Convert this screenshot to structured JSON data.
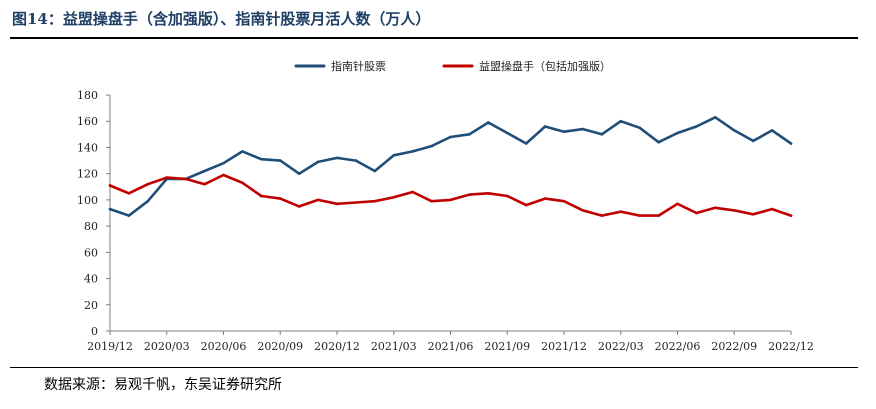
{
  "figure": {
    "title": "图14：益盟操盘手（含加强版）、指南针股票月活人数（万人）",
    "source": "数据来源：易观千帆，东吴证券研究所"
  },
  "colors": {
    "series1": "#1f4e79",
    "series2": "#c00000",
    "axis": "#7f7f7f"
  },
  "chart_data": {
    "type": "line",
    "title": "",
    "xlabel": "",
    "ylabel": "",
    "ylim": [
      0,
      180
    ],
    "yticks": [
      0,
      20,
      40,
      60,
      80,
      100,
      120,
      140,
      160,
      180
    ],
    "grid": false,
    "legend": "top",
    "x": [
      "2019/12",
      "2020/01",
      "2020/02",
      "2020/03",
      "2020/04",
      "2020/05",
      "2020/06",
      "2020/07",
      "2020/08",
      "2020/09",
      "2020/10",
      "2020/11",
      "2020/12",
      "2021/01",
      "2021/02",
      "2021/03",
      "2021/04",
      "2021/05",
      "2021/06",
      "2021/07",
      "2021/08",
      "2021/09",
      "2021/10",
      "2021/11",
      "2021/12",
      "2022/01",
      "2022/02",
      "2022/03",
      "2022/04",
      "2022/05",
      "2022/06",
      "2022/07",
      "2022/08",
      "2022/09",
      "2022/10",
      "2022/11",
      "2022/12"
    ],
    "xtick_labels": [
      "2019/12",
      "2020/03",
      "2020/06",
      "2020/09",
      "2020/12",
      "2021/03",
      "2021/06",
      "2021/09",
      "2021/12",
      "2022/03",
      "2022/06",
      "2022/09",
      "2022/12"
    ],
    "series": [
      {
        "name": "指南针股票",
        "values": [
          93,
          88,
          99,
          116,
          116,
          122,
          128,
          137,
          131,
          130,
          120,
          129,
          132,
          130,
          122,
          134,
          137,
          141,
          148,
          150,
          159,
          151,
          143,
          156,
          152,
          154,
          150,
          160,
          155,
          144,
          151,
          156,
          163,
          153,
          145,
          153,
          143
        ]
      },
      {
        "name": "益盟操盘手（包括加强版）",
        "values": [
          111,
          105,
          112,
          117,
          116,
          112,
          119,
          113,
          103,
          101,
          95,
          100,
          97,
          98,
          99,
          102,
          106,
          99,
          100,
          104,
          105,
          103,
          96,
          101,
          99,
          92,
          88,
          91,
          88,
          88,
          97,
          90,
          94,
          92,
          89,
          93,
          88
        ]
      }
    ]
  }
}
